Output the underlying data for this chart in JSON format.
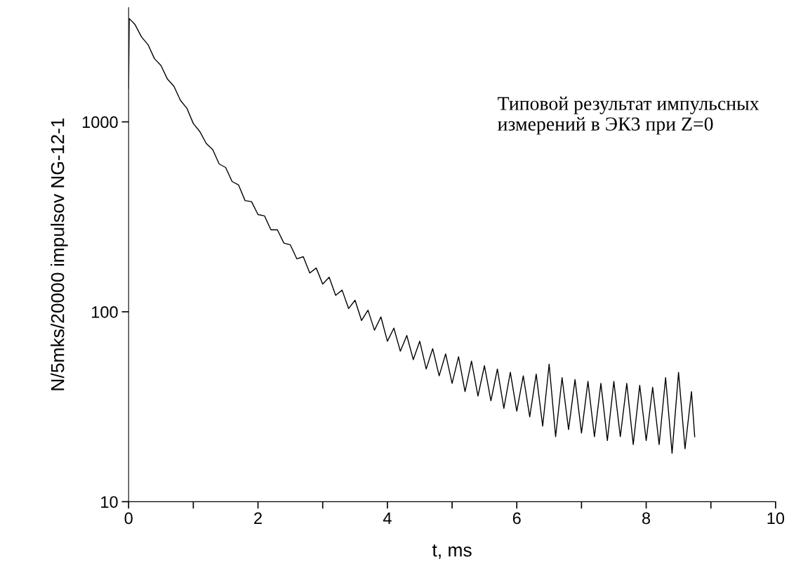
{
  "chart_data": {
    "type": "line",
    "xlabel": "t, ms",
    "ylabel": "N/5mks/20000 impulsov NG-12-1",
    "log": "y",
    "xlim": [
      0,
      10
    ],
    "ylim": [
      10,
      4000
    ],
    "xticks": [
      0,
      {
        "value": 1,
        "label": null
      },
      2,
      {
        "value": 3,
        "label": null
      },
      4,
      {
        "value": 5,
        "label": null
      },
      6,
      {
        "value": 7,
        "label": null
      },
      8,
      {
        "value": 9,
        "label": null
      },
      10
    ],
    "yticks": [
      10,
      100,
      1000
    ],
    "grid": false,
    "legend": false,
    "marker": "none",
    "line_style": "solid",
    "annotations": [
      "Типовой результат импульсных\nизмерений в ЭК3 при Z=0"
    ],
    "series": [
      {
        "color": "#000000",
        "x": [
          0,
          0.01,
          0.1,
          0.2,
          0.3,
          0.4,
          0.5,
          0.6,
          0.7,
          0.8,
          0.9,
          1.0,
          1.1,
          1.2,
          1.3,
          1.4,
          1.5,
          1.6,
          1.7,
          1.8,
          1.9,
          2.0,
          2.1,
          2.2,
          2.3,
          2.4,
          2.5,
          2.6,
          2.7,
          2.8,
          2.9,
          3.0,
          3.1,
          3.2,
          3.3,
          3.4,
          3.5,
          3.6,
          3.7,
          3.8,
          3.9,
          4.0,
          4.1,
          4.2,
          4.3,
          4.4,
          4.5,
          4.6,
          4.7,
          4.8,
          4.9,
          5.0,
          5.1,
          5.2,
          5.3,
          5.4,
          5.5,
          5.6,
          5.7,
          5.8,
          5.9,
          6.0,
          6.1,
          6.2,
          6.3,
          6.4,
          6.5,
          6.6,
          6.7,
          6.8,
          6.9,
          7.0,
          7.1,
          7.2,
          7.3,
          7.4,
          7.5,
          7.6,
          7.7,
          7.8,
          7.9,
          8.0,
          8.1,
          8.2,
          8.3,
          8.4,
          8.5,
          8.6,
          8.7,
          8.75
        ],
        "values": [
          1500,
          3500,
          3250,
          2800,
          2550,
          2150,
          1980,
          1680,
          1540,
          1300,
          1180,
          980,
          890,
          770,
          715,
          600,
          575,
          485,
          465,
          385,
          380,
          325,
          320,
          270,
          270,
          230,
          225,
          190,
          195,
          160,
          170,
          140,
          152,
          122,
          130,
          104,
          115,
          90,
          102,
          80,
          94,
          70,
          82,
          62,
          75,
          56,
          70,
          50,
          64,
          46,
          60,
          42,
          58,
          38,
          55,
          36,
          52,
          34,
          50,
          31,
          48,
          30,
          46,
          28,
          47,
          25,
          53,
          22,
          45,
          24,
          44,
          23,
          43,
          22,
          42,
          21,
          43,
          22,
          42,
          20,
          41,
          21,
          40,
          20,
          45,
          18,
          48,
          19,
          38,
          22
        ]
      }
    ]
  }
}
